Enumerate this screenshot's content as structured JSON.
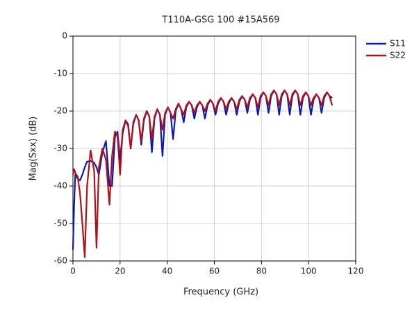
{
  "chart_data": {
    "type": "line",
    "title": "T110A-GSG 100 #15A569",
    "xlabel": "Frequency (GHz)",
    "ylabel": "Mag(Sxx) (dB)",
    "x": [
      0,
      0.5,
      1,
      2,
      3,
      4,
      5,
      6,
      7.5,
      9,
      10,
      11,
      12.5,
      14,
      15.5,
      16.6,
      17.8,
      18.9,
      20,
      21.1,
      22.3,
      23.4,
      24.5,
      25.6,
      26.8,
      27.9,
      29,
      30.1,
      31.3,
      32.4,
      33.5,
      34.6,
      35.8,
      36.9,
      38,
      39.1,
      40.3,
      41.4,
      42.5,
      43.6,
      44.8,
      45.9,
      47,
      48.1,
      49.3,
      50.4,
      51.5,
      52.6,
      53.8,
      54.9,
      56,
      57.1,
      58.3,
      59.4,
      60.5,
      61.6,
      62.8,
      63.9,
      65,
      66.1,
      67.3,
      68.4,
      69.5,
      70.6,
      71.8,
      72.9,
      74,
      75.1,
      76.3,
      77.4,
      78.5,
      79.6,
      80.8,
      81.9,
      83,
      84.1,
      85.3,
      86.4,
      87.5,
      88.6,
      89.8,
      90.9,
      92,
      93.1,
      94.3,
      95.4,
      96.5,
      97.6,
      98.8,
      99.9,
      101,
      102.1,
      103.3,
      104.4,
      105.5,
      106.6,
      107.8,
      108.9,
      110
    ],
    "series": [
      {
        "name": "S11",
        "color": "#0a1aad",
        "values": [
          -57,
          -45,
          -37,
          -38,
          -38.5,
          -37,
          -35,
          -33.5,
          -33.3,
          -33.8,
          -35,
          -37,
          -31,
          -28,
          -40,
          -40,
          -27,
          -25.5,
          -33,
          -26,
          -22.5,
          -23.5,
          -30,
          -23.5,
          -21,
          -22.5,
          -29,
          -22.5,
          -20,
          -21.5,
          -31,
          -22,
          -19.5,
          -21,
          -32,
          -21,
          -19,
          -20.5,
          -27.5,
          -20,
          -18,
          -19.5,
          -23,
          -19,
          -17.5,
          -18.5,
          -22,
          -19,
          -17.5,
          -18.5,
          -22,
          -18.5,
          -17,
          -18,
          -21,
          -18,
          -16.5,
          -17.5,
          -21,
          -18,
          -16.5,
          -17.5,
          -21,
          -17.5,
          -16,
          -17,
          -20.5,
          -17,
          -15.5,
          -16.5,
          -21,
          -16.5,
          -15,
          -16,
          -20.5,
          -16,
          -14.5,
          -15.5,
          -21,
          -16,
          -14.5,
          -15.5,
          -21,
          -16,
          -14.5,
          -15.5,
          -21,
          -16.5,
          -15,
          -16,
          -21,
          -17,
          -15.5,
          -16.5,
          -20.5,
          -16.5,
          -15,
          -16,
          -16.5
        ]
      },
      {
        "name": "S22",
        "color": "#b01018",
        "values": [
          -37,
          -35.5,
          -36.5,
          -37.5,
          -42,
          -50,
          -59,
          -40,
          -30.5,
          -36,
          -56.5,
          -35,
          -30,
          -33,
          -45,
          -32,
          -25.5,
          -26.5,
          -37,
          -25,
          -22.5,
          -24,
          -30,
          -23,
          -21,
          -22.5,
          -28,
          -22,
          -20,
          -21.5,
          -27.5,
          -21.5,
          -19.5,
          -21,
          -25,
          -20.5,
          -19,
          -20.5,
          -22,
          -19.5,
          -18,
          -19.5,
          -21,
          -18.5,
          -17.5,
          -18.5,
          -20.5,
          -18.5,
          -17.5,
          -18.5,
          -20,
          -18,
          -17,
          -18,
          -20,
          -17.5,
          -16.5,
          -17.5,
          -19.5,
          -17.5,
          -16.5,
          -17.5,
          -19.5,
          -17,
          -16,
          -17,
          -19,
          -16.5,
          -15.5,
          -16.5,
          -19,
          -16,
          -15,
          -16,
          -18.5,
          -15.5,
          -14.5,
          -15.5,
          -18.5,
          -15.5,
          -14.5,
          -15.5,
          -18.5,
          -15.5,
          -14.5,
          -15.5,
          -18.5,
          -16,
          -15,
          -16,
          -18.5,
          -16.5,
          -15.5,
          -16.5,
          -18.5,
          -16,
          -15,
          -16,
          -18.5
        ]
      }
    ],
    "xlim": [
      0,
      120
    ],
    "xticks": [
      0,
      20,
      40,
      60,
      80,
      100,
      120
    ],
    "ylim": [
      -60,
      0
    ],
    "yticks": [
      0,
      -10,
      -20,
      -30,
      -40,
      -50,
      -60
    ],
    "grid": true,
    "legend": "right"
  }
}
